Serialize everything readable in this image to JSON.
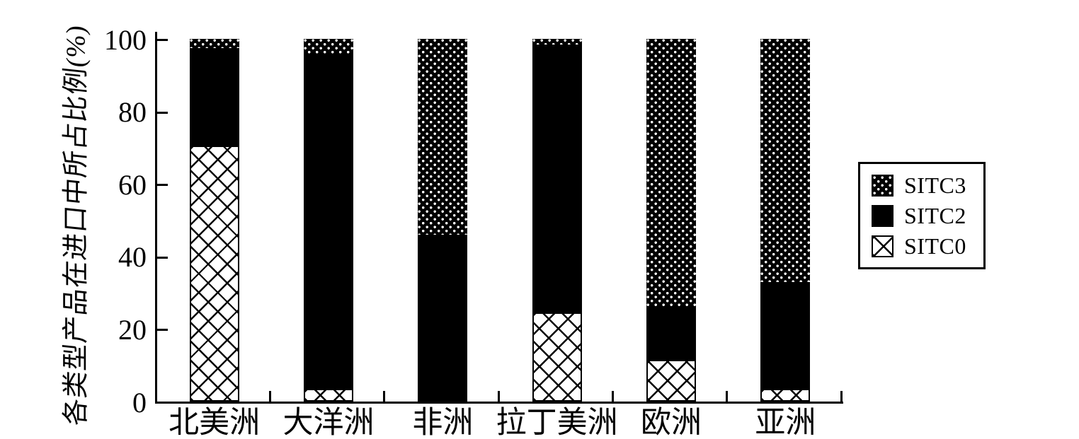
{
  "chart_data": {
    "type": "bar",
    "stacked": true,
    "title": "",
    "xlabel": "",
    "ylabel": "各类型产品在进口中所占比例(%)",
    "ylim": [
      0,
      100
    ],
    "yticks": [
      0,
      20,
      40,
      60,
      80,
      100
    ],
    "grid": false,
    "legend_position": "right-outside",
    "categories": [
      "北美洲",
      "大洋洲",
      "非洲",
      "拉丁美洲",
      "欧洲",
      "亚洲"
    ],
    "series": [
      {
        "name": "SITC0",
        "pattern": "diagonal-lattice",
        "values": [
          70.5,
          3.5,
          0,
          24.5,
          11.5,
          3.5
        ]
      },
      {
        "name": "SITC2",
        "pattern": "solid-black",
        "values": [
          27,
          92.5,
          46,
          74,
          14.5,
          29.5
        ]
      },
      {
        "name": "SITC3",
        "pattern": "dot-grid",
        "values": [
          2.5,
          4,
          54,
          1.5,
          74,
          67
        ]
      }
    ],
    "legend_entries": [
      "SITC3",
      "SITC2",
      "SITC0"
    ]
  },
  "colors": {
    "foreground": "#000000",
    "background": "#ffffff"
  }
}
